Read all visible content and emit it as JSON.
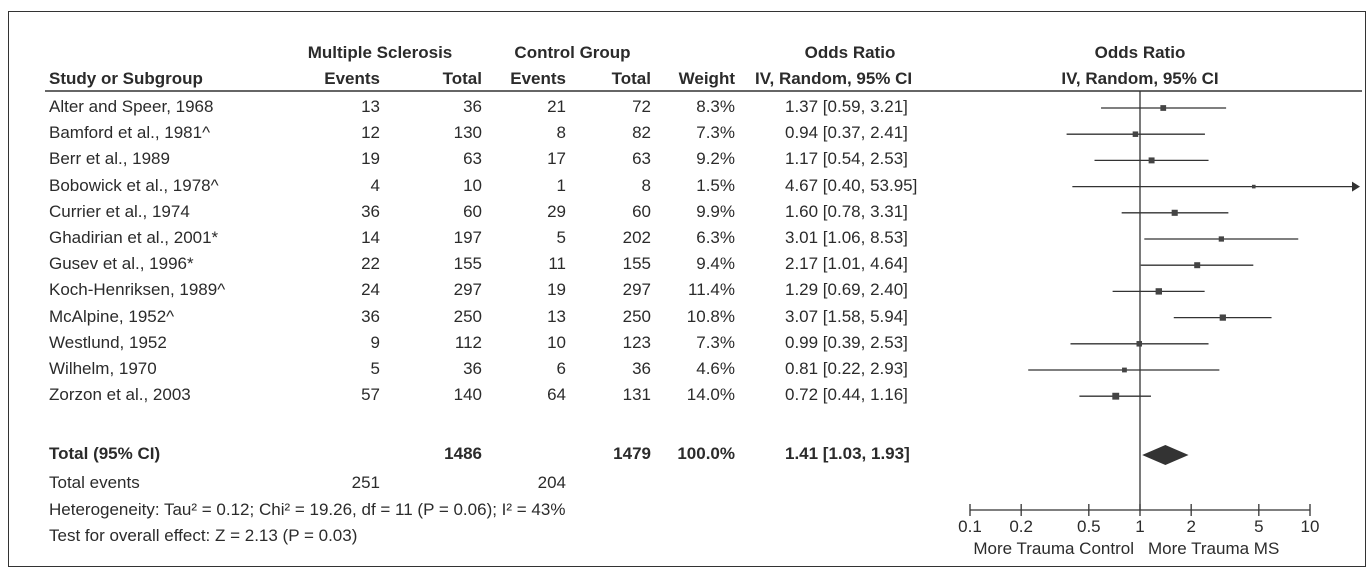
{
  "headers": {
    "group1": "Multiple Sclerosis",
    "group2": "Control Group",
    "or_title": "Odds Ratio",
    "plot_title": "Odds Ratio",
    "study": "Study or Subgroup",
    "events1": "Events",
    "total1": "Total",
    "events2": "Events",
    "total2": "Total",
    "weight": "Weight",
    "or_method": "IV, Random, 95% CI",
    "plot_method": "IV, Random, 95% CI"
  },
  "studies": [
    {
      "name": "Alter and Speer, 1968",
      "e1": "13",
      "t1": "36",
      "e2": "21",
      "t2": "72",
      "weight": "8.3%",
      "ci": "1.37 [0.59, 3.21]"
    },
    {
      "name": "Bamford et al., 1981^",
      "e1": "12",
      "t1": "130",
      "e2": "8",
      "t2": "82",
      "weight": "7.3%",
      "ci": "0.94 [0.37, 2.41]"
    },
    {
      "name": "Berr et al., 1989",
      "e1": "19",
      "t1": "63",
      "e2": "17",
      "t2": "63",
      "weight": "9.2%",
      "ci": "1.17 [0.54, 2.53]"
    },
    {
      "name": "Bobowick et al., 1978^",
      "e1": "4",
      "t1": "10",
      "e2": "1",
      "t2": "8",
      "weight": "1.5%",
      "ci": "4.67 [0.40, 53.95]"
    },
    {
      "name": "Currier et al., 1974",
      "e1": "36",
      "t1": "60",
      "e2": "29",
      "t2": "60",
      "weight": "9.9%",
      "ci": "1.60 [0.78, 3.31]"
    },
    {
      "name": "Ghadirian et al., 2001*",
      "e1": "14",
      "t1": "197",
      "e2": "5",
      "t2": "202",
      "weight": "6.3%",
      "ci": "3.01 [1.06, 8.53]"
    },
    {
      "name": "Gusev et al., 1996*",
      "e1": "22",
      "t1": "155",
      "e2": "11",
      "t2": "155",
      "weight": "9.4%",
      "ci": "2.17 [1.01, 4.64]"
    },
    {
      "name": "Koch-Henriksen, 1989^",
      "e1": "24",
      "t1": "297",
      "e2": "19",
      "t2": "297",
      "weight": "11.4%",
      "ci": "1.29 [0.69, 2.40]"
    },
    {
      "name": "McAlpine, 1952^",
      "e1": "36",
      "t1": "250",
      "e2": "13",
      "t2": "250",
      "weight": "10.8%",
      "ci": "3.07 [1.58, 5.94]"
    },
    {
      "name": "Westlund, 1952",
      "e1": "9",
      "t1": "112",
      "e2": "10",
      "t2": "123",
      "weight": "7.3%",
      "ci": "0.99 [0.39, 2.53]"
    },
    {
      "name": "Wilhelm, 1970",
      "e1": "5",
      "t1": "36",
      "e2": "6",
      "t2": "36",
      "weight": "4.6%",
      "ci": "0.81 [0.22, 2.93]"
    },
    {
      "name": "Zorzon et al., 2003",
      "e1": "57",
      "t1": "140",
      "e2": "64",
      "t2": "131",
      "weight": "14.0%",
      "ci": "0.72 [0.44, 1.16]"
    }
  ],
  "total": {
    "label": "Total (95% CI)",
    "t1": "1486",
    "t2": "1479",
    "weight": "100.0%",
    "ci": "1.41 [1.03, 1.93]"
  },
  "events": {
    "label": "Total events",
    "e1": "251",
    "e2": "204"
  },
  "heterogeneity": "Heterogeneity: Tau² = 0.12; Chi² = 19.26, df = 11 (P = 0.06); I² = 43%",
  "overall_effect": "Test for overall effect: Z = 2.13 (P = 0.03)",
  "axis": {
    "favours_left": "More Trauma Control",
    "favours_right": "More Trauma MS"
  },
  "chart_data": {
    "type": "scatter",
    "scale": "log",
    "xlim": [
      0.1,
      10
    ],
    "ticks": [
      0.1,
      0.2,
      0.5,
      1,
      2,
      5,
      10
    ],
    "tick_labels": [
      "0.1",
      "0.2",
      "0.5",
      "1",
      "2",
      "5",
      "10"
    ],
    "reference_line": 1,
    "series": [
      {
        "or": 1.37,
        "lo": 0.59,
        "hi": 3.21,
        "weight": 8.3
      },
      {
        "or": 0.94,
        "lo": 0.37,
        "hi": 2.41,
        "weight": 7.3
      },
      {
        "or": 1.17,
        "lo": 0.54,
        "hi": 2.53,
        "weight": 9.2
      },
      {
        "or": 4.67,
        "lo": 0.4,
        "hi": 53.95,
        "weight": 1.5
      },
      {
        "or": 1.6,
        "lo": 0.78,
        "hi": 3.31,
        "weight": 9.9
      },
      {
        "or": 3.01,
        "lo": 1.06,
        "hi": 8.53,
        "weight": 6.3
      },
      {
        "or": 2.17,
        "lo": 1.01,
        "hi": 4.64,
        "weight": 9.4
      },
      {
        "or": 1.29,
        "lo": 0.69,
        "hi": 2.4,
        "weight": 11.4
      },
      {
        "or": 3.07,
        "lo": 1.58,
        "hi": 5.94,
        "weight": 10.8
      },
      {
        "or": 0.99,
        "lo": 0.39,
        "hi": 2.53,
        "weight": 7.3
      },
      {
        "or": 0.81,
        "lo": 0.22,
        "hi": 2.93,
        "weight": 4.6
      },
      {
        "or": 0.72,
        "lo": 0.44,
        "hi": 1.16,
        "weight": 14.0
      }
    ],
    "pooled": {
      "or": 1.41,
      "lo": 1.03,
      "hi": 1.93
    }
  }
}
